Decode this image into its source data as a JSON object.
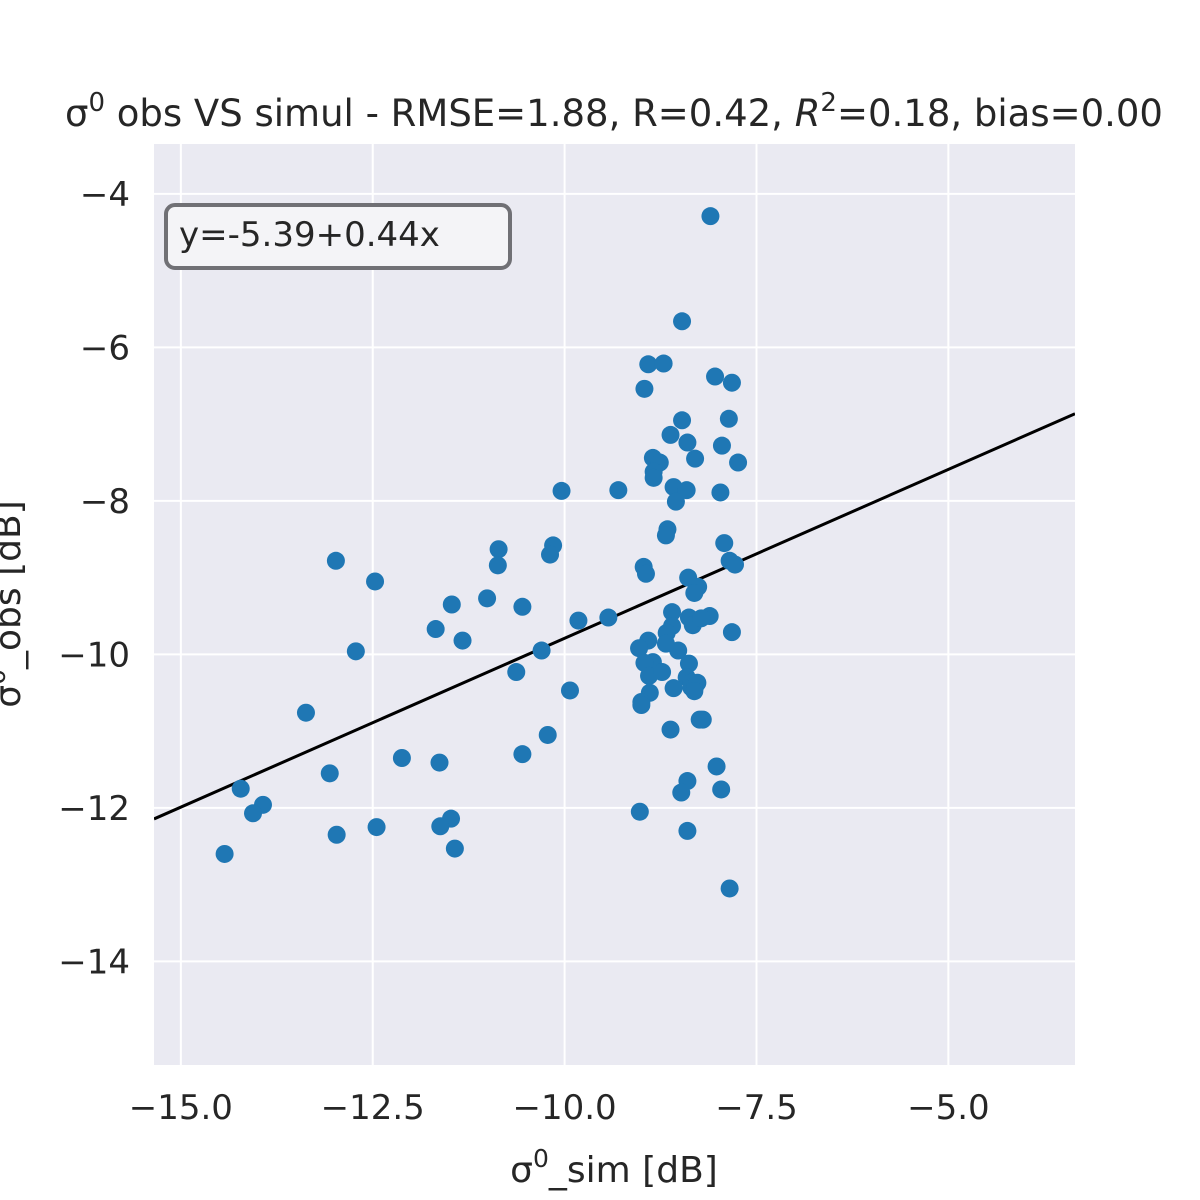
{
  "chart_data": {
    "type": "scatter",
    "title_parts": {
      "pre": "σ",
      "sup0": "0",
      "mid": " obs VS simul - RMSE=1.88, R=0.42, ",
      "r": "R",
      "sup2": "2",
      "post": "=0.18, bias=0.00"
    },
    "xlabel_parts": {
      "pre": "σ",
      "sup": "0",
      "post": "_sim [dB]"
    },
    "ylabel_parts": {
      "pre": "σ",
      "sup": "0",
      "post": "_obs [dB]"
    },
    "fit_text": "y=-5.39+0.44x",
    "fit": {
      "intercept": -5.39,
      "slope": 0.44
    },
    "xlim": [
      -15.35,
      -3.35
    ],
    "ylim": [
      -15.35,
      -3.35
    ],
    "xticks": [
      -15.0,
      -12.5,
      -10.0,
      -7.5,
      -5.0
    ],
    "xtick_labels": [
      "−15.0",
      "−12.5",
      "−10.0",
      "−7.5",
      "−5.0"
    ],
    "yticks": [
      -14,
      -12,
      -10,
      -8,
      -6,
      -4
    ],
    "ytick_labels": [
      "−14",
      "−12",
      "−10",
      "−8",
      "−6",
      "−4"
    ],
    "grid": true,
    "colors": {
      "points": "#1f77b4",
      "line": "#000000",
      "background": "#eaeaf2",
      "grid": "#ffffff"
    },
    "points": {
      "x": [
        -8.1,
        -8.47,
        -8.91,
        -8.71,
        -8.96,
        -8.04,
        -7.82,
        -8.47,
        -7.86,
        -8.62,
        -8.4,
        -7.95,
        -8.85,
        -8.3,
        -8.76,
        -8.84,
        -8.84,
        -7.74,
        -8.58,
        -8.41,
        -8.55,
        -7.97,
        -10.04,
        -9.3,
        -8.66,
        -8.68,
        -7.92,
        -12.98,
        -10.15,
        -10.19,
        -10.86,
        -10.87,
        -8.97,
        -8.94,
        -7.85,
        -7.78,
        -8.39,
        -8.26,
        -8.31,
        -12.47,
        -11.01,
        -11.47,
        -10.55,
        -8.6,
        -9.43,
        -9.82,
        -8.38,
        -8.33,
        -8.11,
        -8.22,
        -8.6,
        -11.68,
        -11.33,
        -8.67,
        -8.91,
        -7.82,
        -9.03,
        -8.52,
        -8.68,
        -10.3,
        -12.72,
        -8.85,
        -8.96,
        -8.9,
        -8.73,
        -8.38,
        -8.41,
        -8.35,
        -10.63,
        -8.35,
        -8.58,
        -9.93,
        -8.3,
        -8.27,
        -8.31,
        -8.89,
        -8.24,
        -9.0,
        -9.0,
        -13.37,
        -8.2,
        -8.62,
        -10.22,
        -10.55,
        -12.12,
        -11.63,
        -8.02,
        -13.06,
        -8.4,
        -7.96,
        -8.48,
        -14.22,
        -13.93,
        -14.06,
        -12.97,
        -11.48,
        -11.62,
        -12.45,
        -9.02,
        -8.4,
        -11.43,
        -14.43,
        -7.85
      ],
      "y": [
        -4.29,
        -5.66,
        -6.22,
        -6.21,
        -6.54,
        -6.38,
        -6.46,
        -6.95,
        -6.93,
        -7.14,
        -7.24,
        -7.28,
        -7.44,
        -7.45,
        -7.5,
        -7.62,
        -7.7,
        -7.5,
        -7.82,
        -7.86,
        -8.01,
        -7.89,
        -7.87,
        -7.86,
        -8.37,
        -8.45,
        -8.55,
        -8.78,
        -8.58,
        -8.7,
        -8.63,
        -8.84,
        -8.86,
        -8.95,
        -8.78,
        -8.83,
        -9.0,
        -9.12,
        -9.2,
        -9.05,
        -9.27,
        -9.35,
        -9.38,
        -9.45,
        -9.52,
        -9.56,
        -9.52,
        -9.62,
        -9.5,
        -9.53,
        -9.63,
        -9.67,
        -9.82,
        -9.72,
        -9.82,
        -9.71,
        -9.92,
        -9.95,
        -9.86,
        -9.95,
        -9.96,
        -10.1,
        -10.11,
        -10.28,
        -10.23,
        -10.12,
        -10.3,
        -10.37,
        -10.23,
        -10.43,
        -10.44,
        -10.47,
        -10.42,
        -10.37,
        -10.48,
        -10.5,
        -10.85,
        -10.62,
        -10.66,
        -10.76,
        -10.85,
        -10.98,
        -11.05,
        -11.3,
        -11.35,
        -11.41,
        -11.46,
        -11.55,
        -11.65,
        -11.76,
        -11.8,
        -11.75,
        -11.96,
        -12.07,
        -12.35,
        -12.14,
        -12.24,
        -12.25,
        -12.05,
        -12.3,
        -12.53,
        -12.6,
        -13.05
      ]
    }
  }
}
